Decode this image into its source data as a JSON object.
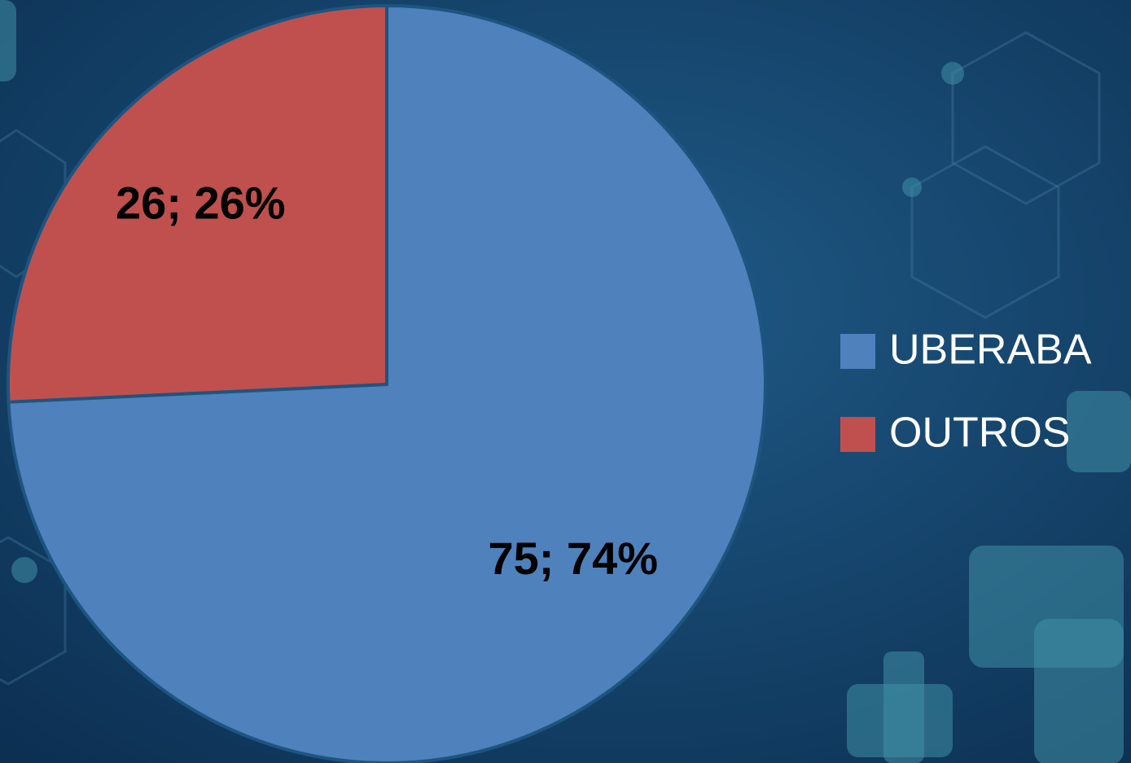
{
  "chart_data": {
    "type": "pie",
    "categories": [
      "UBERABA",
      "OUTROS"
    ],
    "values": [
      75,
      26
    ],
    "value_labels": [
      "75; 74%",
      "26; 26%"
    ],
    "colors": [
      "#4f81bd",
      "#c0504d"
    ],
    "legend": "right"
  }
}
